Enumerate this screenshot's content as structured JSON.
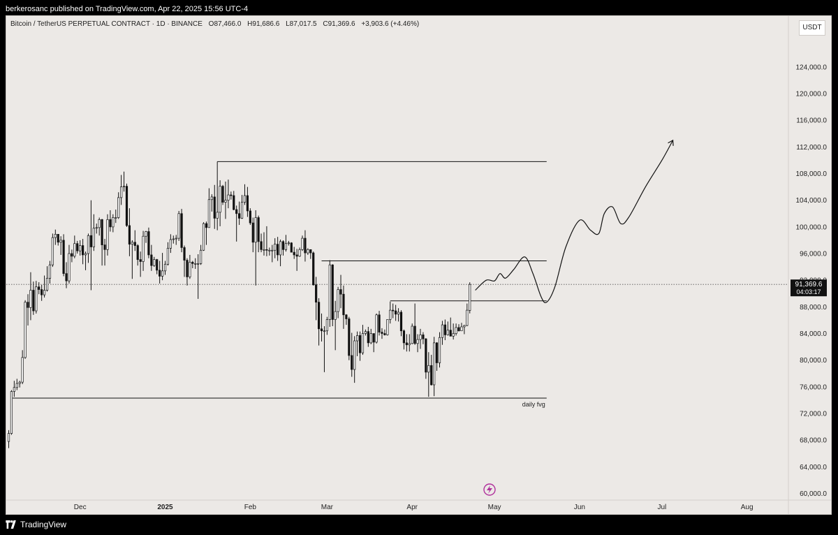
{
  "publisher_line": "berkerosanc published on TradingView.com, Apr 22, 2025 15:56 UTC-4",
  "symbol": {
    "name": "Bitcoin / TetherUS PERPETUAL CONTRACT · 1D · BINANCE",
    "open": "O87,466.0",
    "high": "H91,686.6",
    "low": "L87,017.5",
    "close": "C91,369.6",
    "change": "+3,903.6 (+4.46%)"
  },
  "currency": "USDT",
  "footer_brand": "TradingView",
  "chart_data": {
    "type": "candlestick",
    "x_axis": {
      "labels": [
        "Dec",
        "2025",
        "Feb",
        "Mar",
        "Apr",
        "May",
        "Jun",
        "Jul",
        "Aug"
      ]
    },
    "y_axis": {
      "ticks": [
        60000,
        64000,
        68000,
        72000,
        76000,
        80000,
        84000,
        88000,
        92000,
        96000,
        100000,
        104000,
        108000,
        112000,
        116000,
        120000,
        124000
      ],
      "tick_labels": [
        "60,000.0",
        "64,000.0",
        "68,000.0",
        "72,000.0",
        "76,000.0",
        "80,000.0",
        "84,000.0",
        "88,000.0",
        "92,000.0",
        "96,000.0",
        "100,000.0",
        "104,000.0",
        "108,000.0",
        "112,000.0",
        "116,000.0",
        "120,000.0",
        "124,000.0"
      ],
      "range": [
        59000,
        128500
      ]
    },
    "current_price": {
      "value": 91369.6,
      "label": "91,369.6",
      "countdown": "04:03:17"
    },
    "annotations": {
      "fvg_label": "daily fvg"
    },
    "levels": [
      {
        "price": 109800,
        "from": "2025-01-20",
        "to": "2025-05-20"
      },
      {
        "price": 94900,
        "from": "2025-02-27",
        "to": "2025-05-20"
      },
      {
        "price": 88900,
        "from": "2025-03-24",
        "to": "2025-05-20"
      },
      {
        "price": 74300,
        "from": "2024-11-06",
        "to": "2025-05-20",
        "label": "daily fvg"
      }
    ],
    "projection": [
      [
        "2025-04-24",
        90500
      ],
      [
        "2025-04-28",
        92000
      ],
      [
        "2025-05-01",
        91900
      ],
      [
        "2025-05-03",
        93000
      ],
      [
        "2025-05-05",
        92300
      ],
      [
        "2025-05-08",
        93600
      ],
      [
        "2025-05-12",
        95500
      ],
      [
        "2025-05-15",
        93000
      ],
      [
        "2025-05-18",
        89500
      ],
      [
        "2025-05-20",
        88700
      ],
      [
        "2025-05-23",
        91000
      ],
      [
        "2025-05-27",
        97000
      ],
      [
        "2025-06-01",
        101000
      ],
      [
        "2025-06-05",
        99500
      ],
      [
        "2025-06-08",
        99000
      ],
      [
        "2025-06-10",
        102000
      ],
      [
        "2025-06-13",
        103000
      ],
      [
        "2025-06-16",
        100500
      ],
      [
        "2025-06-19",
        101500
      ],
      [
        "2025-06-25",
        106000
      ],
      [
        "2025-07-01",
        110000
      ],
      [
        "2025-07-05",
        113000
      ]
    ],
    "candles": [
      [
        "2024-11-05",
        67800,
        69500,
        66800,
        69000
      ],
      [
        "2024-11-06",
        69000,
        75500,
        68800,
        75300
      ],
      [
        "2024-11-07",
        75300,
        76900,
        74500,
        75900
      ],
      [
        "2024-11-08",
        75900,
        77200,
        75500,
        76500
      ],
      [
        "2024-11-09",
        76500,
        76900,
        75900,
        76700
      ],
      [
        "2024-11-10",
        76700,
        81500,
        76400,
        80400
      ],
      [
        "2024-11-11",
        80400,
        89000,
        80200,
        88700
      ],
      [
        "2024-11-12",
        88700,
        89900,
        85200,
        87900
      ],
      [
        "2024-11-13",
        87900,
        93200,
        86000,
        90500
      ],
      [
        "2024-11-14",
        90500,
        91800,
        86800,
        87400
      ],
      [
        "2024-11-15",
        87400,
        91900,
        87000,
        91000
      ],
      [
        "2024-11-16",
        91000,
        91700,
        89900,
        90600
      ],
      [
        "2024-11-17",
        90600,
        91300,
        88900,
        89800
      ],
      [
        "2024-11-18",
        89800,
        92700,
        89400,
        90500
      ],
      [
        "2024-11-19",
        90500,
        94100,
        90300,
        92300
      ],
      [
        "2024-11-20",
        92300,
        94900,
        91500,
        94300
      ],
      [
        "2024-11-21",
        94300,
        99000,
        94000,
        98400
      ],
      [
        "2024-11-22",
        98400,
        99600,
        97300,
        98900
      ],
      [
        "2024-11-23",
        98900,
        98900,
        97200,
        97700
      ],
      [
        "2024-11-24",
        97700,
        98600,
        95800,
        98000
      ],
      [
        "2024-11-25",
        98000,
        98900,
        92600,
        93000
      ],
      [
        "2024-11-26",
        93000,
        94700,
        90800,
        91900
      ],
      [
        "2024-11-27",
        91900,
        97300,
        91500,
        96000
      ],
      [
        "2024-11-28",
        96000,
        96600,
        94700,
        95600
      ],
      [
        "2024-11-29",
        95600,
        98700,
        95300,
        97500
      ],
      [
        "2024-11-30",
        97500,
        97900,
        96000,
        96400
      ],
      [
        "2024-12-01",
        96400,
        98000,
        95700,
        97200
      ],
      [
        "2024-12-02",
        97200,
        98200,
        94400,
        95800
      ],
      [
        "2024-12-03",
        95800,
        96300,
        93500,
        96000
      ],
      [
        "2024-12-04",
        96000,
        99000,
        94600,
        98700
      ],
      [
        "2024-12-05",
        98700,
        104000,
        90500,
        97000
      ],
      [
        "2024-12-06",
        97000,
        101900,
        96400,
        99800
      ],
      [
        "2024-12-07",
        99800,
        100500,
        99000,
        99900
      ],
      [
        "2024-12-08",
        99900,
        101400,
        98700,
        101100
      ],
      [
        "2024-12-09",
        101100,
        101200,
        94200,
        97300
      ],
      [
        "2024-12-10",
        97300,
        98200,
        94200,
        96600
      ],
      [
        "2024-12-11",
        96600,
        101900,
        95700,
        101100
      ],
      [
        "2024-12-12",
        101100,
        102500,
        99300,
        100000
      ],
      [
        "2024-12-13",
        100000,
        101900,
        99200,
        101400
      ],
      [
        "2024-12-14",
        101400,
        102600,
        100600,
        101400
      ],
      [
        "2024-12-15",
        101400,
        105200,
        101200,
        104400
      ],
      [
        "2024-12-16",
        104400,
        107800,
        103300,
        106000
      ],
      [
        "2024-12-17",
        106000,
        108300,
        105300,
        106100
      ],
      [
        "2024-12-18",
        106100,
        106500,
        100000,
        100200
      ],
      [
        "2024-12-19",
        100200,
        102800,
        95600,
        97400
      ],
      [
        "2024-12-20",
        97400,
        98000,
        92200,
        97700
      ],
      [
        "2024-12-21",
        97700,
        99500,
        96400,
        97200
      ],
      [
        "2024-12-22",
        97200,
        97400,
        94200,
        95100
      ],
      [
        "2024-12-23",
        95100,
        96300,
        92500,
        94800
      ],
      [
        "2024-12-24",
        94800,
        99400,
        93400,
        98600
      ],
      [
        "2024-12-25",
        98600,
        99400,
        97600,
        99300
      ],
      [
        "2024-12-26",
        99300,
        99900,
        95300,
        95800
      ],
      [
        "2024-12-27",
        95800,
        97300,
        93400,
        94200
      ],
      [
        "2024-12-28",
        94200,
        95500,
        94000,
        95100
      ],
      [
        "2024-12-29",
        95100,
        95200,
        92900,
        93500
      ],
      [
        "2024-12-30",
        93500,
        94900,
        91500,
        92600
      ],
      [
        "2024-12-31",
        92600,
        96100,
        92000,
        93400
      ],
      [
        "2025-01-01",
        93400,
        94900,
        92800,
        94400
      ],
      [
        "2025-01-02",
        94400,
        97700,
        94200,
        96800
      ],
      [
        "2025-01-03",
        96800,
        98900,
        96100,
        98100
      ],
      [
        "2025-01-04",
        98100,
        98700,
        97500,
        98200
      ],
      [
        "2025-01-05",
        98200,
        98800,
        97300,
        98300
      ],
      [
        "2025-01-06",
        98300,
        102400,
        97900,
        102000
      ],
      [
        "2025-01-07",
        102000,
        102700,
        96200,
        96900
      ],
      [
        "2025-01-08",
        96900,
        97200,
        92500,
        95000
      ],
      [
        "2025-01-09",
        95000,
        95300,
        91200,
        92500
      ],
      [
        "2025-01-10",
        92500,
        95800,
        92200,
        94700
      ],
      [
        "2025-01-11",
        94700,
        94900,
        93800,
        94500
      ],
      [
        "2025-01-12",
        94500,
        95300,
        93700,
        94500
      ],
      [
        "2025-01-13",
        94500,
        95900,
        89200,
        94500
      ],
      [
        "2025-01-14",
        94500,
        97300,
        94300,
        96500
      ],
      [
        "2025-01-15",
        96500,
        100700,
        96400,
        100500
      ],
      [
        "2025-01-16",
        100500,
        100800,
        97300,
        99900
      ],
      [
        "2025-01-17",
        99900,
        105800,
        99900,
        104100
      ],
      [
        "2025-01-18",
        104100,
        104900,
        102300,
        104500
      ],
      [
        "2025-01-19",
        104500,
        106300,
        99700,
        101300
      ],
      [
        "2025-01-20",
        101300,
        109800,
        99500,
        102200
      ],
      [
        "2025-01-21",
        102200,
        107000,
        100100,
        106100
      ],
      [
        "2025-01-22",
        106100,
        106300,
        103300,
        103700
      ],
      [
        "2025-01-23",
        103700,
        106800,
        101200,
        104000
      ],
      [
        "2025-01-24",
        104000,
        107100,
        102800,
        104800
      ],
      [
        "2025-01-25",
        104800,
        105300,
        104100,
        104700
      ],
      [
        "2025-01-26",
        104700,
        105400,
        102500,
        102600
      ],
      [
        "2025-01-27",
        102600,
        103200,
        97800,
        102000
      ],
      [
        "2025-01-28",
        102000,
        103800,
        100300,
        101300
      ],
      [
        "2025-01-29",
        101300,
        104800,
        101200,
        103700
      ],
      [
        "2025-01-30",
        103700,
        106400,
        103300,
        104700
      ],
      [
        "2025-01-31",
        104700,
        106000,
        101500,
        102400
      ],
      [
        "2025-02-01",
        102400,
        102800,
        100300,
        100600
      ],
      [
        "2025-02-02",
        100600,
        101400,
        96200,
        97700
      ],
      [
        "2025-02-03",
        97700,
        102500,
        91200,
        101400
      ],
      [
        "2025-02-04",
        101400,
        101700,
        96200,
        97800
      ],
      [
        "2025-02-05",
        97800,
        99000,
        96200,
        96600
      ],
      [
        "2025-02-06",
        96600,
        99200,
        95700,
        96600
      ],
      [
        "2025-02-07",
        96600,
        100100,
        95600,
        96500
      ],
      [
        "2025-02-08",
        96500,
        96900,
        95700,
        96500
      ],
      [
        "2025-02-09",
        96500,
        97300,
        94700,
        96500
      ],
      [
        "2025-02-10",
        96500,
        98300,
        95300,
        97400
      ],
      [
        "2025-02-11",
        97400,
        98500,
        94900,
        95800
      ],
      [
        "2025-02-12",
        95800,
        98100,
        94100,
        97800
      ],
      [
        "2025-02-13",
        97800,
        98000,
        95700,
        96600
      ],
      [
        "2025-02-14",
        96600,
        98800,
        96300,
        97500
      ],
      [
        "2025-02-15",
        97500,
        97900,
        97200,
        97600
      ],
      [
        "2025-02-16",
        97600,
        97700,
        96200,
        96200
      ],
      [
        "2025-02-17",
        96200,
        97000,
        95200,
        95800
      ],
      [
        "2025-02-18",
        95800,
        96700,
        93400,
        95600
      ],
      [
        "2025-02-19",
        95600,
        96900,
        95500,
        96600
      ],
      [
        "2025-02-20",
        96600,
        98700,
        96400,
        98300
      ],
      [
        "2025-02-21",
        98300,
        99500,
        94800,
        96100
      ],
      [
        "2025-02-22",
        96100,
        96800,
        95800,
        96600
      ],
      [
        "2025-02-23",
        96600,
        96600,
        95200,
        96100
      ],
      [
        "2025-02-24",
        96100,
        96300,
        91200,
        91300
      ],
      [
        "2025-02-25",
        91300,
        92500,
        86000,
        88700
      ],
      [
        "2025-02-26",
        88700,
        89300,
        82200,
        84700
      ],
      [
        "2025-02-27",
        84700,
        87000,
        82800,
        84400
      ],
      [
        "2025-02-28",
        84400,
        85100,
        78200,
        84400
      ],
      [
        "2025-03-01",
        84400,
        86500,
        83800,
        86100
      ],
      [
        "2025-03-02",
        86100,
        95000,
        85000,
        94300
      ],
      [
        "2025-03-03",
        94300,
        94400,
        85100,
        86100
      ],
      [
        "2025-03-04",
        86100,
        88900,
        81500,
        87300
      ],
      [
        "2025-03-05",
        87300,
        91000,
        86300,
        90600
      ],
      [
        "2025-03-06",
        90600,
        92800,
        87800,
        89900
      ],
      [
        "2025-03-07",
        89900,
        91200,
        84700,
        86800
      ],
      [
        "2025-03-08",
        86800,
        86900,
        85300,
        86200
      ],
      [
        "2025-03-09",
        86200,
        86500,
        80000,
        80700
      ],
      [
        "2025-03-10",
        80700,
        84100,
        77500,
        78600
      ],
      [
        "2025-03-11",
        78600,
        83600,
        76600,
        82900
      ],
      [
        "2025-03-12",
        82900,
        84300,
        80600,
        83700
      ],
      [
        "2025-03-13",
        83700,
        84300,
        79900,
        81100
      ],
      [
        "2025-03-14",
        81100,
        85300,
        80800,
        84000
      ],
      [
        "2025-03-15",
        84000,
        84600,
        83700,
        84300
      ],
      [
        "2025-03-16",
        84300,
        85000,
        82000,
        82600
      ],
      [
        "2025-03-17",
        82600,
        84700,
        82400,
        84000
      ],
      [
        "2025-03-18",
        84000,
        84000,
        81200,
        82700
      ],
      [
        "2025-03-19",
        82700,
        87000,
        82500,
        86800
      ],
      [
        "2025-03-20",
        86800,
        87400,
        83700,
        84200
      ],
      [
        "2025-03-21",
        84200,
        84800,
        83200,
        84000
      ],
      [
        "2025-03-22",
        84000,
        84600,
        83700,
        83800
      ],
      [
        "2025-03-23",
        83800,
        86100,
        83700,
        86100
      ],
      [
        "2025-03-24",
        86100,
        88800,
        85500,
        87500
      ],
      [
        "2025-03-25",
        87500,
        88500,
        86300,
        87400
      ],
      [
        "2025-03-26",
        87400,
        88300,
        85900,
        86900
      ],
      [
        "2025-03-27",
        86900,
        87800,
        85800,
        87200
      ],
      [
        "2025-03-28",
        87200,
        87500,
        83600,
        84400
      ],
      [
        "2025-03-29",
        84400,
        84600,
        81600,
        82600
      ],
      [
        "2025-03-30",
        82600,
        83900,
        81300,
        82300
      ],
      [
        "2025-03-31",
        82300,
        83900,
        81300,
        82500
      ],
      [
        "2025-04-01",
        82500,
        85500,
        82400,
        85100
      ],
      [
        "2025-04-02",
        85100,
        88500,
        82300,
        82500
      ],
      [
        "2025-04-03",
        82500,
        83900,
        81200,
        83100
      ],
      [
        "2025-04-04",
        83100,
        84700,
        81700,
        83800
      ],
      [
        "2025-04-05",
        83800,
        84200,
        82400,
        83200
      ],
      [
        "2025-04-06",
        83200,
        83300,
        77200,
        78200
      ],
      [
        "2025-04-07",
        78200,
        81200,
        74500,
        79200
      ],
      [
        "2025-04-08",
        79200,
        80800,
        76200,
        76300
      ],
      [
        "2025-04-09",
        76300,
        83500,
        74600,
        82600
      ],
      [
        "2025-04-10",
        82600,
        82700,
        78400,
        79600
      ],
      [
        "2025-04-11",
        79600,
        84200,
        78900,
        83400
      ],
      [
        "2025-04-12",
        83400,
        85900,
        82300,
        85300
      ],
      [
        "2025-04-13",
        85300,
        86100,
        83000,
        83800
      ],
      [
        "2025-04-14",
        83800,
        85800,
        83700,
        84500
      ],
      [
        "2025-04-15",
        84500,
        86400,
        83600,
        83600
      ],
      [
        "2025-04-16",
        83600,
        85500,
        83100,
        84000
      ],
      [
        "2025-04-17",
        84000,
        85500,
        83700,
        84900
      ],
      [
        "2025-04-18",
        84900,
        85400,
        84300,
        84400
      ],
      [
        "2025-04-19",
        84400,
        85600,
        84400,
        85000
      ],
      [
        "2025-04-20",
        85000,
        85300,
        83900,
        85200
      ],
      [
        "2025-04-21",
        85200,
        88500,
        85100,
        87500
      ],
      [
        "2025-04-22",
        87466,
        91686.6,
        87017.5,
        91369.6
      ]
    ]
  }
}
